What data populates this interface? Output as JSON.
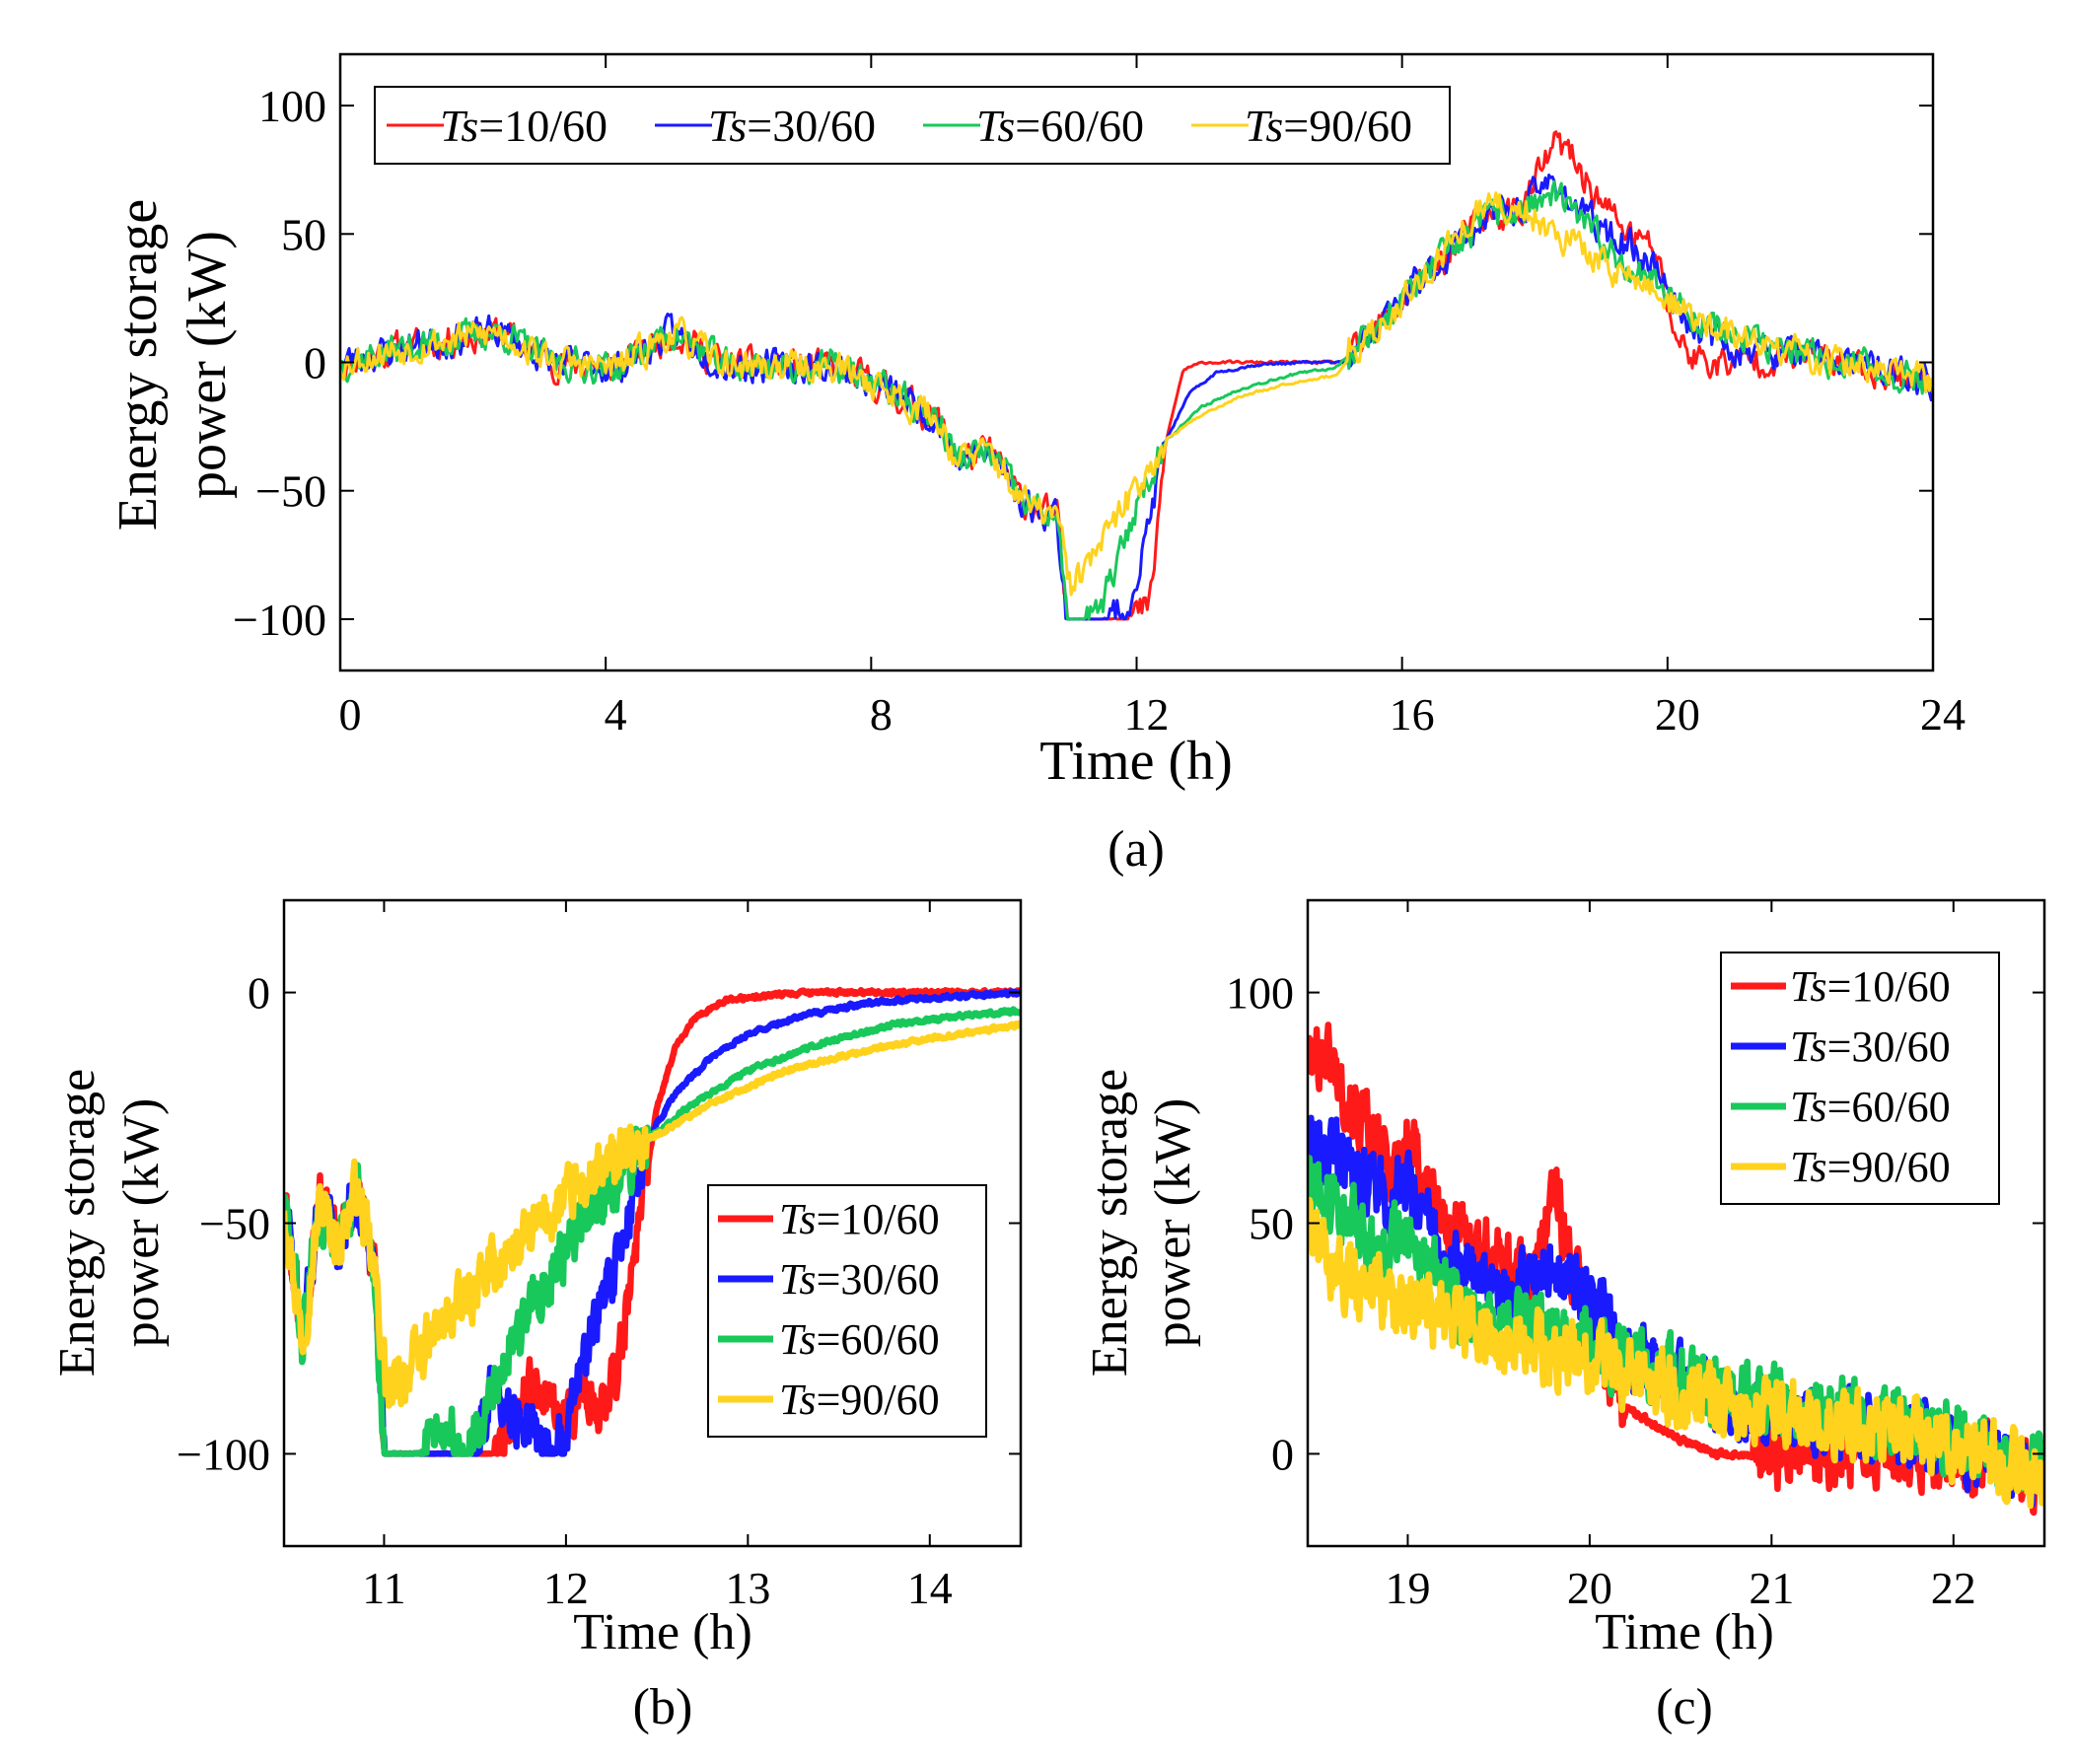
{
  "colors": {
    "ts10": "#ff1a1a",
    "ts30": "#1a1aff",
    "ts60": "#19c85a",
    "ts90": "#ffd21e"
  },
  "chart_data": [
    {
      "type": "line",
      "panel": "a",
      "caption": "(a)",
      "xlabel": "Time (h)",
      "ylabel": [
        "Energy storage",
        "power (kW)"
      ],
      "xlim": [
        0,
        24
      ],
      "ylim": [
        -120,
        120
      ],
      "xticks": [
        0,
        4,
        8,
        12,
        16,
        20,
        24
      ],
      "yticks": [
        100,
        50,
        0,
        -50,
        -100
      ],
      "legend_position": "top-left",
      "series": [
        {
          "name": "Ts=10/60",
          "key": "ts10",
          "noise": 5.5,
          "seed": 11,
          "x": [
            0,
            1,
            2.4,
            3.2,
            4.2,
            5,
            5.8,
            7.5,
            8.2,
            9,
            9.3,
            9.8,
            10.3,
            10.8,
            10.95,
            11.2,
            11.6,
            12,
            12.2,
            12.45,
            12.7,
            13.0,
            13.5,
            14.5,
            15.2,
            16.2,
            17.2,
            17.8,
            18.3,
            18.5,
            19,
            19.5,
            19.8,
            20.1,
            20.3,
            20.6,
            21,
            22,
            23,
            24
          ],
          "y": [
            0,
            6,
            12,
            0,
            -2,
            12,
            -1,
            -2,
            -10,
            -22,
            -38,
            -35,
            -55,
            -60,
            -100,
            -100,
            -100,
            -98,
            -95,
            -30,
            -3,
            0,
            0,
            0,
            0,
            30,
            55,
            60,
            85,
            82,
            62,
            48,
            45,
            12,
            4,
            0,
            0,
            3,
            -2,
            -8
          ]
        },
        {
          "name": "Ts=30/60",
          "key": "ts30",
          "noise": 5.5,
          "seed": 23,
          "x": [
            0,
            1,
            2.4,
            3.2,
            4.2,
            5,
            5.8,
            7.5,
            8.2,
            9,
            9.3,
            9.8,
            10.3,
            10.8,
            10.95,
            11.2,
            11.5,
            11.8,
            12.0,
            12.45,
            12.8,
            13.2,
            13.8,
            14.5,
            15.2,
            16.2,
            17.2,
            17.8,
            18.3,
            18.6,
            19,
            19.5,
            19.8,
            20.2,
            20.6,
            21,
            22,
            23,
            24
          ],
          "y": [
            0,
            6,
            12,
            0,
            -2,
            12,
            -1,
            -2,
            -10,
            -22,
            -38,
            -35,
            -55,
            -60,
            -100,
            -100,
            -100,
            -96,
            -85,
            -30,
            -12,
            -4,
            -1,
            0,
            0,
            30,
            55,
            60,
            72,
            60,
            52,
            44,
            38,
            20,
            10,
            6,
            3,
            -2,
            -8
          ]
        },
        {
          "name": "Ts=60/60",
          "key": "ts60",
          "noise": 5.5,
          "seed": 37,
          "x": [
            0,
            1,
            2.4,
            3.2,
            4.2,
            5,
            5.8,
            7.5,
            8.2,
            9,
            9.3,
            9.8,
            10.3,
            10.8,
            10.95,
            11.2,
            11.4,
            11.7,
            12.0,
            12.45,
            13.0,
            13.6,
            14.3,
            15.0,
            16.2,
            17.2,
            17.8,
            18.3,
            18.8,
            19.3,
            19.8,
            20.4,
            21,
            22,
            23,
            24
          ],
          "y": [
            0,
            6,
            12,
            0,
            -2,
            12,
            -1,
            -2,
            -10,
            -22,
            -38,
            -35,
            -55,
            -60,
            -100,
            -100,
            -98,
            -80,
            -55,
            -30,
            -17,
            -10,
            -5,
            -2,
            30,
            55,
            60,
            65,
            52,
            40,
            32,
            18,
            10,
            3,
            -2,
            -8
          ]
        },
        {
          "name": "Ts=90/60",
          "key": "ts90",
          "noise": 5.5,
          "seed": 53,
          "x": [
            0,
            1,
            2.4,
            3.2,
            4.2,
            5,
            5.8,
            7.5,
            8.2,
            9,
            9.3,
            9.8,
            10.3,
            10.8,
            11.0,
            11.5,
            12.0,
            12.45,
            13.0,
            13.6,
            14.3,
            15.0,
            16.2,
            17.2,
            17.8,
            18.3,
            18.8,
            19.3,
            19.8,
            20.4,
            21,
            22,
            23,
            24
          ],
          "y": [
            0,
            6,
            12,
            0,
            -2,
            12,
            -1,
            -2,
            -10,
            -22,
            -38,
            -35,
            -55,
            -60,
            -88,
            -70,
            -48,
            -30,
            -20,
            -13,
            -8,
            -5,
            30,
            60,
            60,
            52,
            42,
            35,
            28,
            17,
            10,
            3,
            -2,
            -8
          ]
        }
      ]
    },
    {
      "type": "line",
      "panel": "b",
      "caption": "(b)",
      "xlabel": "Time (h)",
      "ylabel": [
        "Energy storage",
        "power (kW)"
      ],
      "xlim": [
        10.45,
        14.5
      ],
      "ylim": [
        -120,
        20
      ],
      "xticks": [
        11,
        12,
        13,
        14
      ],
      "yticks": [
        0,
        -50,
        -100
      ],
      "legend_position": "center-right",
      "series": [
        {
          "name": "Ts=10/60",
          "key": "ts10",
          "noise": 5,
          "seed": 61,
          "x": [
            10.45,
            10.55,
            10.65,
            10.75,
            10.85,
            10.95,
            11.0,
            11.2,
            11.6,
            11.8,
            12.0,
            12.1,
            12.2,
            12.3,
            12.4,
            12.5,
            12.6,
            12.7,
            12.85,
            13.0,
            13.3,
            13.7,
            14.5
          ],
          "y": [
            -45,
            -75,
            -45,
            -55,
            -42,
            -62,
            -100,
            -100,
            -100,
            -85,
            -95,
            -85,
            -90,
            -78,
            -50,
            -25,
            -12,
            -6,
            -2,
            -1,
            0,
            0,
            0
          ]
        },
        {
          "name": "Ts=30/60",
          "key": "ts30",
          "noise": 5,
          "seed": 71,
          "x": [
            10.45,
            10.55,
            10.65,
            10.75,
            10.85,
            10.95,
            11.0,
            11.2,
            11.5,
            11.6,
            11.8,
            11.95,
            12.1,
            12.3,
            12.45,
            12.6,
            12.8,
            13.0,
            13.3,
            13.7,
            14.1,
            14.5
          ],
          "y": [
            -45,
            -75,
            -45,
            -55,
            -42,
            -62,
            -100,
            -100,
            -100,
            -85,
            -95,
            -100,
            -80,
            -55,
            -32,
            -22,
            -14,
            -9,
            -5,
            -2,
            -1,
            0
          ]
        },
        {
          "name": "Ts=60/60",
          "key": "ts60",
          "noise": 5,
          "seed": 83,
          "x": [
            10.45,
            10.55,
            10.65,
            10.75,
            10.85,
            10.95,
            11.0,
            11.2,
            11.3,
            11.45,
            11.6,
            11.8,
            12.0,
            12.2,
            12.45,
            12.7,
            13.0,
            13.4,
            13.8,
            14.2,
            14.5
          ],
          "y": [
            -45,
            -75,
            -45,
            -55,
            -42,
            -62,
            -100,
            -100,
            -92,
            -100,
            -85,
            -68,
            -55,
            -44,
            -32,
            -24,
            -17,
            -11,
            -7,
            -5,
            -4
          ]
        },
        {
          "name": "Ts=90/60",
          "key": "ts90",
          "noise": 5,
          "seed": 97,
          "x": [
            10.45,
            10.55,
            10.65,
            10.75,
            10.85,
            10.95,
            11.02,
            11.3,
            11.6,
            12.0,
            12.3,
            12.45,
            12.8,
            13.2,
            13.6,
            14.0,
            14.5
          ],
          "y": [
            -45,
            -75,
            -45,
            -55,
            -42,
            -62,
            -88,
            -73,
            -60,
            -45,
            -36,
            -32,
            -24,
            -17,
            -13,
            -10,
            -7
          ]
        }
      ]
    },
    {
      "type": "line",
      "panel": "c",
      "caption": "(c)",
      "xlabel": "Time (h)",
      "ylabel": [
        "Energy storage",
        "power (kW)"
      ],
      "xlim": [
        18.45,
        22.5
      ],
      "ylim": [
        -20,
        120
      ],
      "xticks": [
        19,
        20,
        21,
        22
      ],
      "yticks": [
        100,
        50,
        0
      ],
      "legend_position": "top-right",
      "series": [
        {
          "name": "Ts=10/60",
          "key": "ts10",
          "noise": 6,
          "seed": 101,
          "x": [
            18.45,
            18.55,
            18.7,
            18.9,
            19.0,
            19.2,
            19.5,
            19.7,
            19.8,
            19.9,
            20.0,
            20.2,
            20.5,
            20.7,
            21.0,
            21.5,
            21.9,
            22.2,
            22.5
          ],
          "y": [
            85,
            88,
            75,
            62,
            68,
            50,
            42,
            38,
            60,
            40,
            30,
            10,
            3,
            0,
            0,
            0,
            0,
            -2,
            -5
          ]
        },
        {
          "name": "Ts=30/60",
          "key": "ts30",
          "noise": 6,
          "seed": 113,
          "x": [
            18.45,
            18.6,
            18.9,
            19.0,
            19.2,
            19.5,
            19.8,
            20.0,
            20.2,
            20.4,
            20.7,
            21.0,
            21.5,
            21.9,
            22.2,
            22.5
          ],
          "y": [
            70,
            65,
            55,
            60,
            42,
            35,
            40,
            34,
            22,
            18,
            12,
            8,
            6,
            3,
            -1,
            -4
          ]
        },
        {
          "name": "Ts=60/60",
          "key": "ts60",
          "noise": 6,
          "seed": 127,
          "x": [
            18.45,
            18.6,
            18.8,
            19.0,
            19.3,
            19.6,
            20.0,
            20.4,
            20.8,
            21.2,
            21.8,
            22.2,
            22.5
          ],
          "y": [
            60,
            55,
            45,
            48,
            30,
            28,
            24,
            18,
            12,
            10,
            6,
            -1,
            -4
          ]
        },
        {
          "name": "Ts=90/60",
          "key": "ts90",
          "noise": 6,
          "seed": 139,
          "x": [
            18.45,
            18.6,
            18.8,
            19.0,
            19.3,
            19.6,
            20.0,
            20.4,
            20.8,
            21.2,
            21.8,
            22.2,
            22.5
          ],
          "y": [
            48,
            40,
            36,
            33,
            28,
            24,
            20,
            15,
            10,
            8,
            5,
            -1,
            -4
          ]
        }
      ]
    }
  ]
}
